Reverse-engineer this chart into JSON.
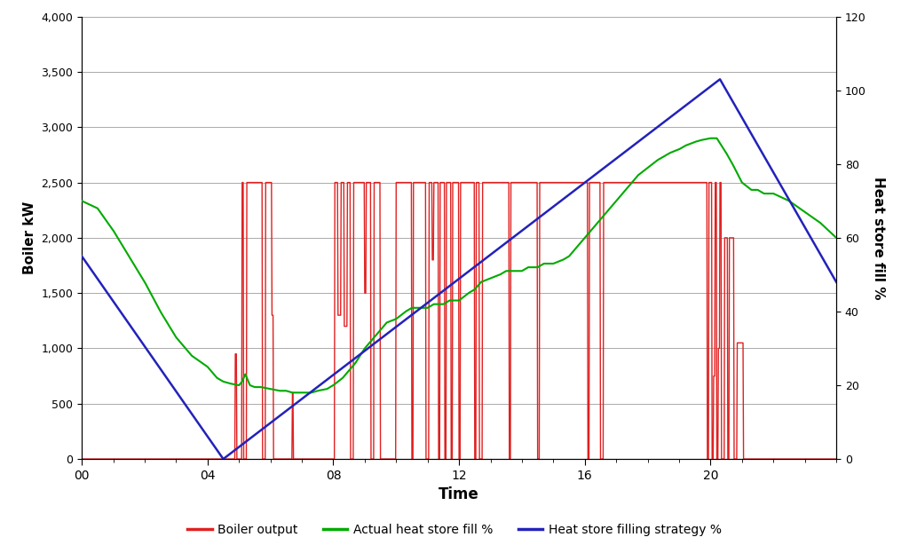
{
  "title": "",
  "xlabel": "Time",
  "ylabel_left": "Boiler kW",
  "ylabel_right": "Heat store fill %",
  "x_ticks": [
    0,
    4,
    8,
    12,
    16,
    20
  ],
  "x_tick_labels": [
    "00",
    "04",
    "08",
    "12",
    "16",
    "20"
  ],
  "x_max": 24,
  "ylim_left": [
    0,
    4000
  ],
  "ylim_right": [
    0,
    120
  ],
  "y_ticks_left": [
    0,
    500,
    1000,
    1500,
    2000,
    2500,
    3000,
    3500,
    4000
  ],
  "y_ticks_right": [
    0,
    20,
    40,
    60,
    80,
    100,
    120
  ],
  "boiler_color": "#e02020",
  "actual_fill_color": "#00aa00",
  "strategy_color": "#2222bb",
  "legend_labels": [
    "Boiler output",
    "Actual heat store fill %",
    "Heat store filling strategy %"
  ],
  "background_color": "#ffffff",
  "grid_color": "#aaaaaa"
}
